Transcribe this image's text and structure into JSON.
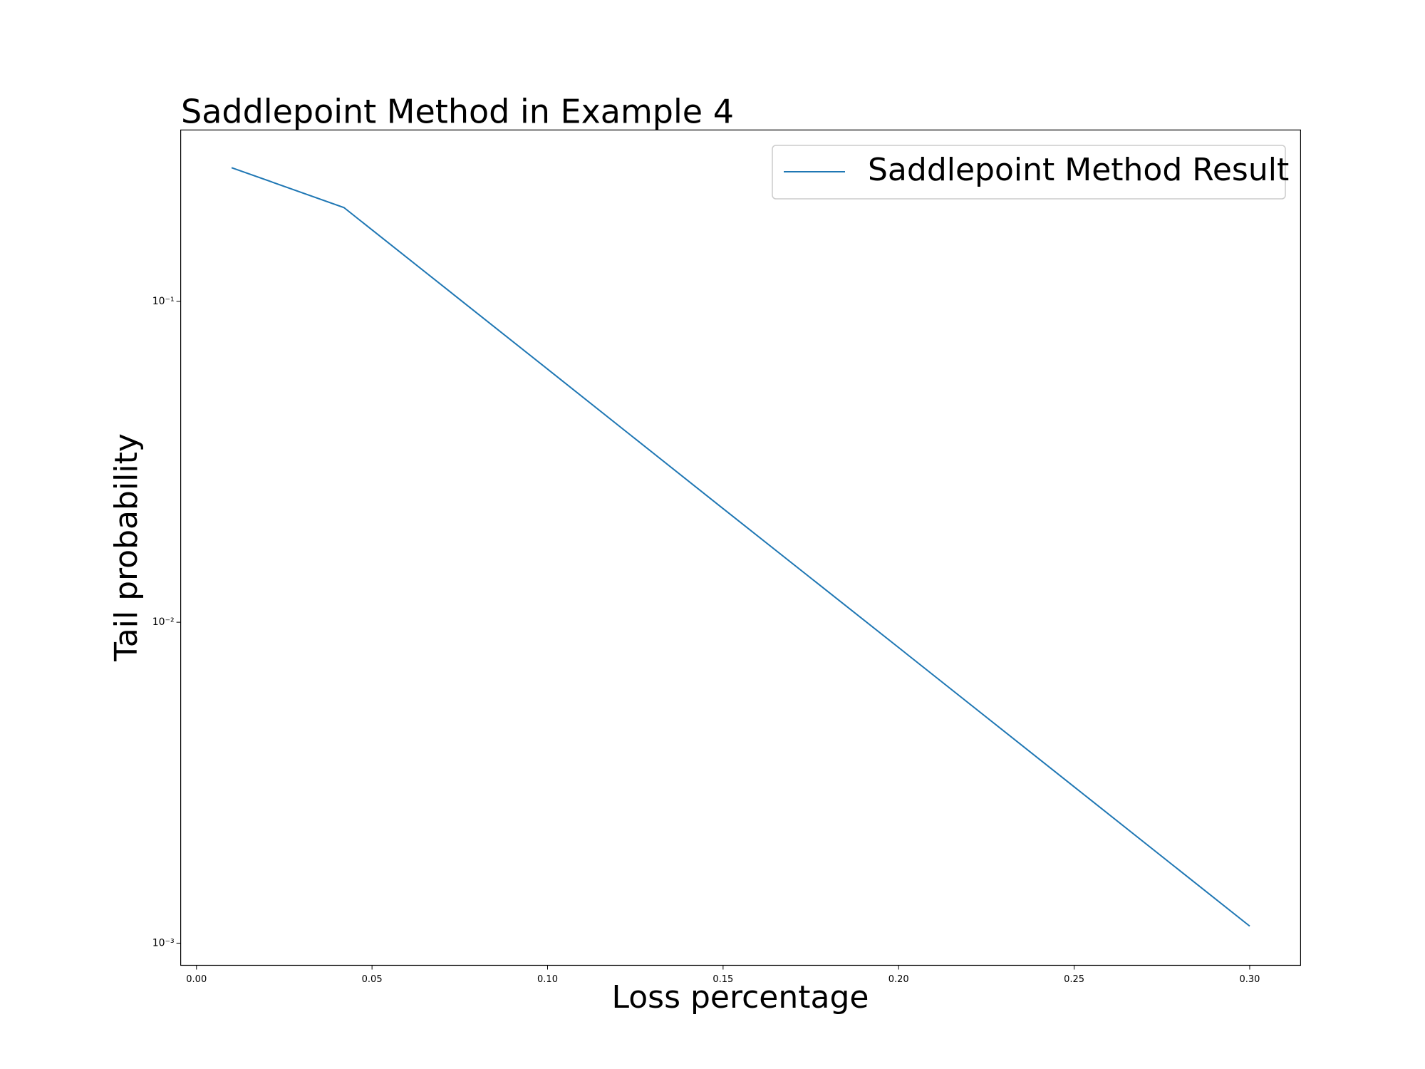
{
  "chart_data": {
    "type": "line",
    "title": "Saddlepoint Method in Example 4",
    "xlabel": "Loss percentage",
    "ylabel": "Tail probability",
    "yscale": "log",
    "x": [
      0.01,
      0.042,
      0.1,
      0.15,
      0.2,
      0.25,
      0.3
    ],
    "series": [
      {
        "name": "Saddlepoint Method Result",
        "color": "#1f77b4",
        "values": [
          0.261,
          0.196,
          0.0615,
          0.0226,
          0.00834,
          0.00307,
          0.00113
        ]
      }
    ],
    "xlim": [
      -0.0045,
      0.3145
    ],
    "ylim": [
      0.000853,
      0.342
    ],
    "xticks": [
      {
        "value": 0,
        "label": "0.00"
      },
      0.05,
      {
        "value": 0.1,
        "label": "0.10"
      },
      0.15,
      {
        "value": 0.2,
        "label": "0.20"
      },
      0.25,
      {
        "value": 0.3,
        "label": "0.30"
      }
    ],
    "yticks": [
      {
        "value": 0.001,
        "label": "10⁻³"
      },
      {
        "value": 0.01,
        "label": "10⁻²"
      },
      {
        "value": 0.1,
        "label": "10⁻¹"
      }
    ],
    "legend": "upper right",
    "grid": false
  }
}
